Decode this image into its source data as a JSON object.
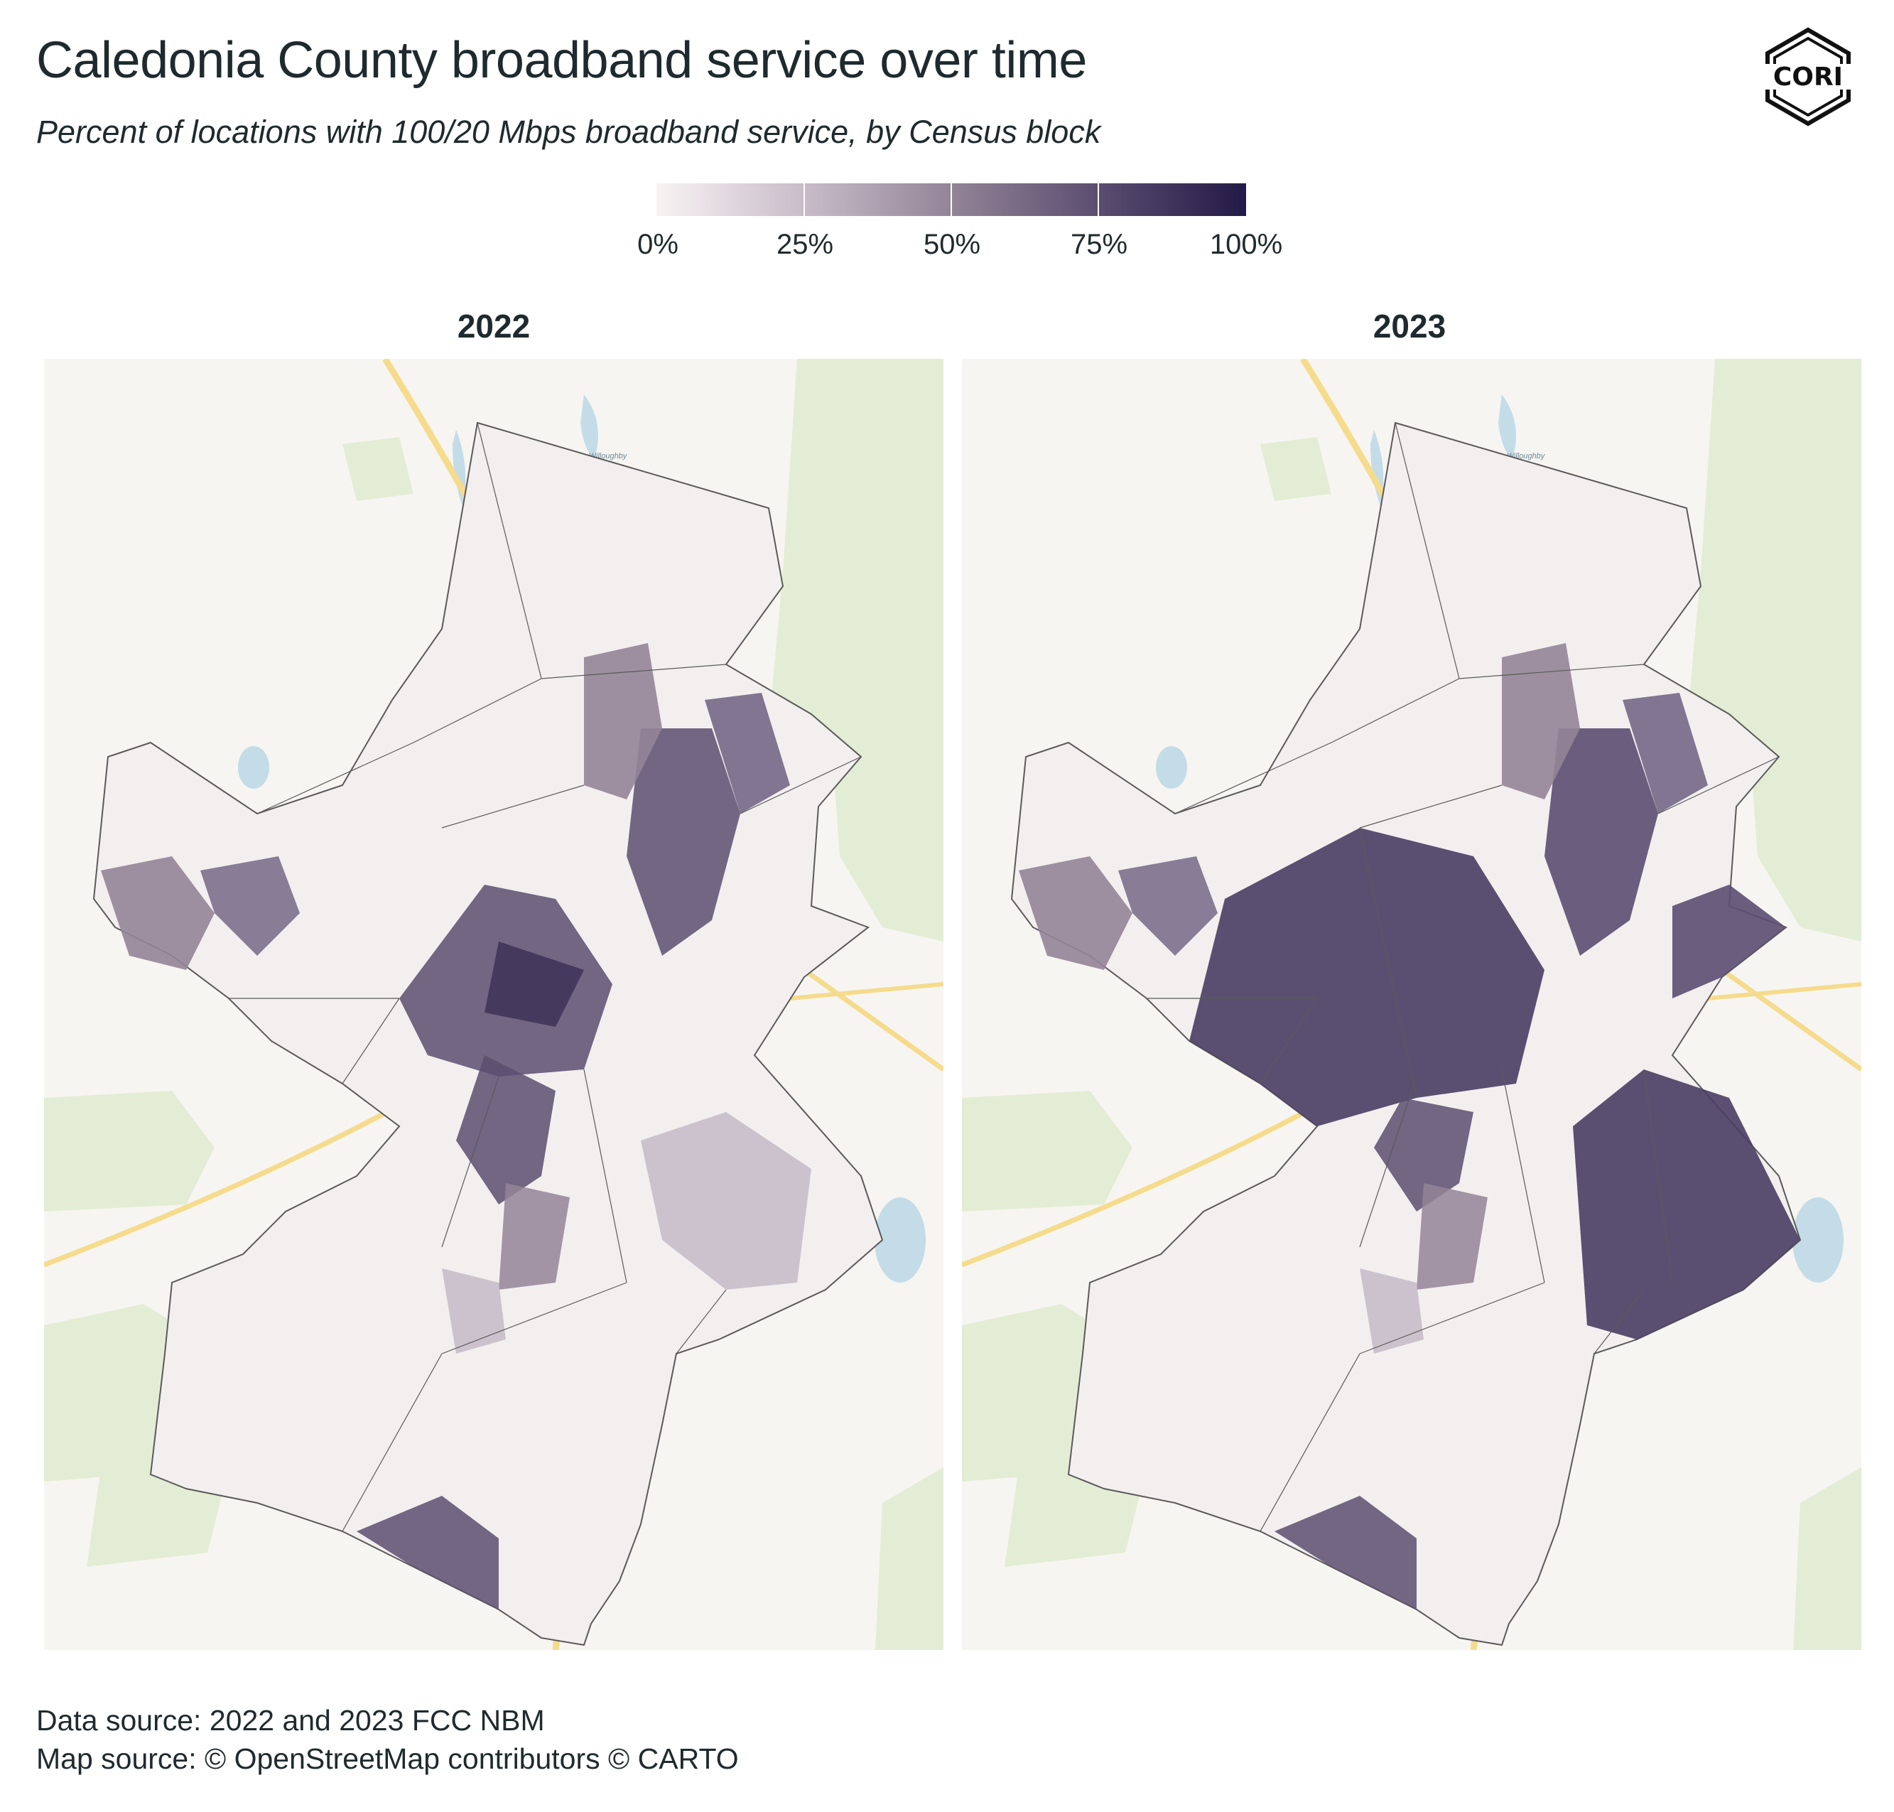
{
  "title": "Caledonia County broadband service over time",
  "subtitle": "Percent of locations with 100/20 Mbps broadband service, by Census block",
  "legend": {
    "ticks": [
      "0%",
      "25%",
      "50%",
      "75%",
      "100%"
    ],
    "color_low": "#f9f3f3",
    "color_high": "#221a47"
  },
  "panels": [
    {
      "year": "2022",
      "lake_label": "Lake Willoughby"
    },
    {
      "year": "2023",
      "lake_label": "Lake Willoughby"
    }
  ],
  "logo_text": "CORI",
  "sources": {
    "data": "Data source: 2022 and 2023 FCC NBM",
    "map": "Map source: © OpenStreetMap contributors © CARTO"
  },
  "colors": {
    "basemap": "#f7f5f1",
    "forest": "#e3edd5",
    "water": "#c3dce8",
    "roads": "#f5db8c"
  }
}
